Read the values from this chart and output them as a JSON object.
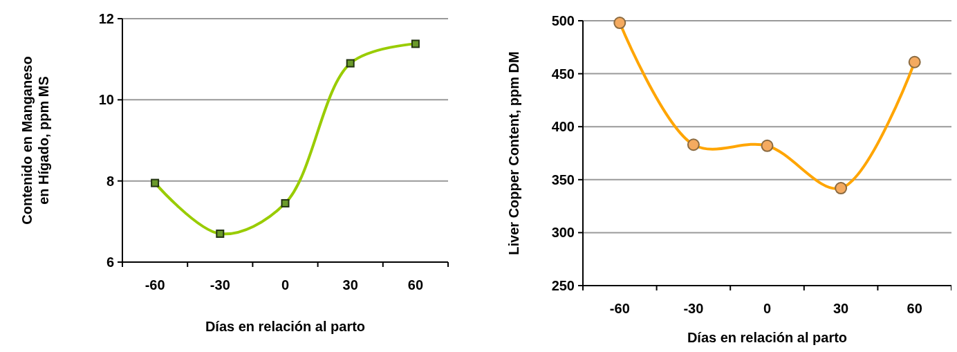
{
  "chart_data": [
    {
      "type": "line",
      "xlabel": "Días en relación al parto",
      "ylabel": "Contenido en Manganeso en Hígado, ppm MS",
      "categories": [
        "-60",
        "-30",
        "0",
        "30",
        "60"
      ],
      "series": [
        {
          "color": "#99cc00",
          "values": [
            7.95,
            6.7,
            7.45,
            10.9,
            11.38
          ]
        }
      ],
      "ylim": [
        6,
        12
      ],
      "yticks": [
        6,
        8,
        10,
        12
      ],
      "grid": "y",
      "marker": "square"
    },
    {
      "type": "line",
      "xlabel": "Días en relación al parto",
      "ylabel": "Liver Copper Content, ppm DM",
      "categories": [
        "-60",
        "-30",
        "0",
        "30",
        "60"
      ],
      "series": [
        {
          "color": "#ffa500",
          "values": [
            498,
            383,
            382,
            342,
            461
          ]
        }
      ],
      "ylim": [
        250,
        500
      ],
      "yticks": [
        250,
        300,
        350,
        400,
        450,
        500
      ],
      "grid": "y",
      "marker": "circle"
    }
  ]
}
